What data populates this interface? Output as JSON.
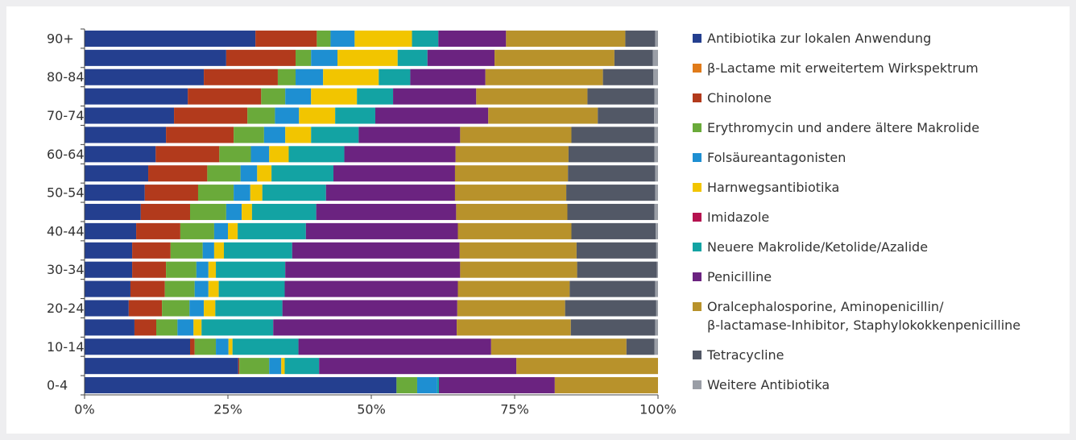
{
  "chart_data": {
    "type": "bar",
    "orientation": "horizontal",
    "stacked": true,
    "categories": [
      "90+",
      null,
      "80-84",
      null,
      "70-74",
      null,
      "60-64",
      null,
      "50-54",
      null,
      "40-44",
      null,
      "30-34",
      null,
      "20-24",
      null,
      "10-14",
      null,
      "0-4"
    ],
    "xlim": [
      0,
      100
    ],
    "xticks": [
      {
        "value": 0,
        "label": "0%"
      },
      {
        "value": 25,
        "label": "25%"
      },
      {
        "value": 50,
        "label": "50%"
      },
      {
        "value": 75,
        "label": "75%"
      },
      {
        "value": 100,
        "label": "100%"
      }
    ],
    "legend": "right",
    "series": [
      {
        "name": "Antibiotika zur lokalen Anwendung",
        "color": "#243f8f",
        "values": [
          29.8,
          24.7,
          20.8,
          18,
          15.6,
          14.2,
          12.4,
          11.1,
          10.5,
          9.8,
          9,
          8.3,
          8.3,
          8,
          7.7,
          8.7,
          18.4,
          26.8,
          54.4
        ]
      },
      {
        "name": "β-Lactame mit erweitertem Wirkspektrum",
        "color": "#e07b1a",
        "values": [
          0,
          0,
          0,
          0,
          0,
          0,
          0,
          0,
          0,
          0,
          0,
          0,
          0,
          0,
          0,
          0,
          0,
          0,
          0
        ]
      },
      {
        "name": "Chinolone",
        "color": "#b23a1c",
        "values": [
          10.7,
          12.1,
          12.9,
          12.8,
          12.8,
          11.8,
          11.1,
          10.3,
          9.3,
          8.6,
          7.7,
          6.7,
          5.9,
          6,
          5.8,
          3.8,
          0.8,
          0.2,
          0
        ]
      },
      {
        "name": "Erythromycin und andere ältere Makrolide",
        "color": "#6aaa3a",
        "values": [
          2.4,
          2.7,
          3.1,
          4.2,
          4.8,
          5.3,
          5.5,
          5.8,
          6.2,
          6.3,
          5.9,
          5.6,
          5.3,
          5.2,
          4.8,
          3.7,
          3.7,
          5.2,
          3.6
        ]
      },
      {
        "name": "Folsäureantagonisten",
        "color": "#1e8fd2",
        "values": [
          4.2,
          4.6,
          4.8,
          4.5,
          4.2,
          3.7,
          3.2,
          2.9,
          2.9,
          2.7,
          2.4,
          2,
          2.1,
          2.4,
          2.5,
          2.8,
          2.2,
          2.1,
          3.5
        ]
      },
      {
        "name": "Harnwegsantibiotika",
        "color": "#f2c500",
        "values": [
          10,
          10.5,
          9.7,
          8,
          6.3,
          4.5,
          3.4,
          2.5,
          2.1,
          1.8,
          1.7,
          1.7,
          1.3,
          1.8,
          2,
          1.4,
          0.7,
          0.6,
          0
        ]
      },
      {
        "name": "Imidazole",
        "color": "#b5124f",
        "values": [
          0,
          0,
          0,
          0,
          0,
          0,
          0,
          0,
          0,
          0,
          0,
          0,
          0,
          0,
          0,
          0,
          0,
          0,
          0
        ]
      },
      {
        "name": "Neuere Makrolide/Ketolide/Azalide",
        "color": "#13a3a3",
        "values": [
          4.6,
          5.2,
          5.5,
          6.3,
          7,
          8.3,
          9.7,
          10.8,
          11.1,
          11.2,
          11.9,
          11.9,
          12.1,
          11.5,
          11.7,
          12.5,
          11.5,
          6,
          0.3
        ]
      },
      {
        "name": "Penicilline",
        "color": "#6b2380",
        "values": [
          11.8,
          11.7,
          13.1,
          14.5,
          19.7,
          17.7,
          19.4,
          21.2,
          22.5,
          24.4,
          26.5,
          29.2,
          30.5,
          30.2,
          30.5,
          32,
          33.6,
          34.4,
          20.2
        ]
      },
      {
        "name": "Oralcephalosporine, Aminopenicillin/\nβ-lactamase-Inhibitor, Staphylokokkenpenicilline",
        "color": "#b8922b",
        "values": [
          20.8,
          20.9,
          20.5,
          19.4,
          19.1,
          19.4,
          19.7,
          19.7,
          19.4,
          19.4,
          19.8,
          20.4,
          20.4,
          19.5,
          18.8,
          19.9,
          23.6,
          24.7,
          18
        ]
      },
      {
        "name": "Tetracycline",
        "color": "#525866",
        "values": [
          5.2,
          6.7,
          8.8,
          11.7,
          9.8,
          14.5,
          15,
          15.2,
          15.5,
          15.2,
          14.7,
          13.9,
          13.9,
          14.9,
          15.9,
          14.7,
          4.9,
          0,
          0
        ]
      },
      {
        "name": "Weitere Antibiotika",
        "color": "#9a9ea6",
        "values": [
          0.5,
          0.9,
          0.8,
          0.6,
          0.7,
          0.6,
          0.6,
          0.5,
          0.5,
          0.6,
          0.4,
          0.3,
          0.2,
          0.5,
          0.3,
          0.5,
          0.6,
          0,
          0
        ]
      }
    ]
  }
}
